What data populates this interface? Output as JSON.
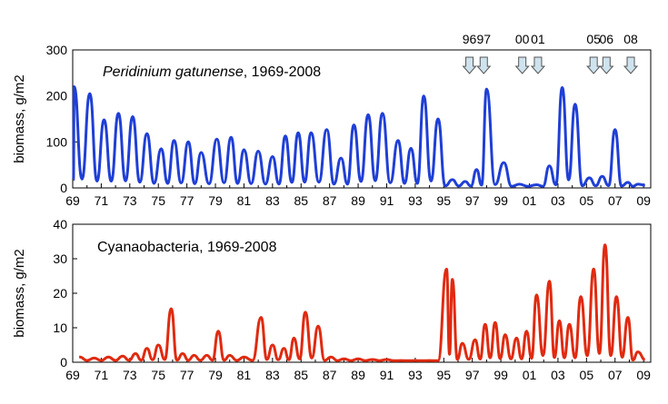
{
  "chart_data": [
    {
      "type": "line",
      "title_italic": "Peridinium gatunense",
      "title_rest": ", 1969-2008",
      "ylabel": "biomass, g/m2",
      "xlabel": "",
      "xlim": [
        69,
        109.5
      ],
      "ylim": [
        0,
        300
      ],
      "yticks": [
        0,
        100,
        200,
        300
      ],
      "xtick_labels": [
        "69",
        "71",
        "73",
        "75",
        "77",
        "79",
        "81",
        "83",
        "85",
        "87",
        "89",
        "91",
        "93",
        "95",
        "97",
        "99",
        "01",
        "03",
        "05",
        "07",
        "09"
      ],
      "color": "#1f3fd6",
      "annotations": [
        {
          "label": "96",
          "x": 96.8
        },
        {
          "label": "97",
          "x": 97.8
        },
        {
          "label": "00",
          "x": 100.5
        },
        {
          "label": "01",
          "x": 101.6
        },
        {
          "label": "05",
          "x": 105.5
        },
        {
          "label": "06",
          "x": 106.4
        },
        {
          "label": "08",
          "x": 108.1
        }
      ],
      "peaks": [
        [
          69.1,
          220
        ],
        [
          70.2,
          205
        ],
        [
          71.2,
          148
        ],
        [
          72.2,
          162
        ],
        [
          73.2,
          155
        ],
        [
          74.2,
          118
        ],
        [
          75.2,
          85
        ],
        [
          76.1,
          103
        ],
        [
          77.1,
          100
        ],
        [
          78.0,
          77
        ],
        [
          79.1,
          106
        ],
        [
          80.1,
          110
        ],
        [
          81.0,
          83
        ],
        [
          82.0,
          80
        ],
        [
          83.0,
          68
        ],
        [
          83.9,
          113
        ],
        [
          84.8,
          120
        ],
        [
          85.7,
          120
        ],
        [
          86.8,
          127
        ],
        [
          87.8,
          65
        ],
        [
          88.7,
          137
        ],
        [
          89.7,
          159
        ],
        [
          90.7,
          162
        ],
        [
          91.8,
          103
        ],
        [
          92.7,
          86
        ],
        [
          93.6,
          200
        ],
        [
          94.6,
          150
        ],
        [
          95.6,
          18
        ],
        [
          96.5,
          14
        ],
        [
          97.3,
          40
        ],
        [
          98.0,
          215
        ],
        [
          99.2,
          55
        ],
        [
          100.3,
          8
        ],
        [
          101.5,
          7
        ],
        [
          102.4,
          48
        ],
        [
          103.3,
          218
        ],
        [
          104.2,
          182
        ],
        [
          105.2,
          22
        ],
        [
          106.1,
          25
        ],
        [
          107.0,
          127
        ],
        [
          107.9,
          12
        ],
        [
          108.6,
          8
        ]
      ]
    },
    {
      "type": "line",
      "title": "Cyanaobacteria, 1969-2008",
      "ylabel": "biomass, g/m2",
      "xlabel": "",
      "xlim": [
        69,
        109.5
      ],
      "ylim": [
        0,
        40
      ],
      "yticks": [
        0,
        10,
        20,
        30,
        40
      ],
      "xtick_labels": [
        "69",
        "71",
        "73",
        "75",
        "77",
        "79",
        "81",
        "83",
        "85",
        "87",
        "89",
        "91",
        "93",
        "95",
        "97",
        "99",
        "01",
        "03",
        "05",
        "07",
        "09"
      ],
      "color": "#e02a10",
      "peaks": [
        [
          69.5,
          1.5
        ],
        [
          70.5,
          1.2
        ],
        [
          71.5,
          1.5
        ],
        [
          72.5,
          1.8
        ],
        [
          73.4,
          2.5
        ],
        [
          74.2,
          4
        ],
        [
          75.0,
          5
        ],
        [
          75.9,
          15.5
        ],
        [
          76.7,
          2.5
        ],
        [
          77.5,
          2
        ],
        [
          78.4,
          2
        ],
        [
          79.2,
          9
        ],
        [
          80.0,
          2
        ],
        [
          81.0,
          1.5
        ],
        [
          82.2,
          13
        ],
        [
          83.0,
          5
        ],
        [
          83.8,
          4
        ],
        [
          84.5,
          7
        ],
        [
          85.3,
          14.5
        ],
        [
          86.2,
          10.5
        ],
        [
          87.1,
          1.5
        ],
        [
          88.0,
          1
        ],
        [
          89.0,
          1
        ],
        [
          90.0,
          0.8
        ],
        [
          91.0,
          0.8
        ],
        [
          92.0,
          0.5
        ],
        [
          93.0,
          0.5
        ],
        [
          94.0,
          0.5
        ],
        [
          95.2,
          27
        ],
        [
          95.6,
          24
        ],
        [
          96.3,
          5.5
        ],
        [
          97.2,
          6.5
        ],
        [
          97.9,
          11
        ],
        [
          98.6,
          11.5
        ],
        [
          99.3,
          8
        ],
        [
          100.1,
          7
        ],
        [
          100.8,
          9
        ],
        [
          101.5,
          19.5
        ],
        [
          102.4,
          23.5
        ],
        [
          103.1,
          12
        ],
        [
          103.8,
          11
        ],
        [
          104.6,
          19
        ],
        [
          105.5,
          27
        ],
        [
          106.3,
          34
        ],
        [
          107.1,
          19
        ],
        [
          107.9,
          13
        ],
        [
          108.6,
          3
        ]
      ]
    }
  ]
}
